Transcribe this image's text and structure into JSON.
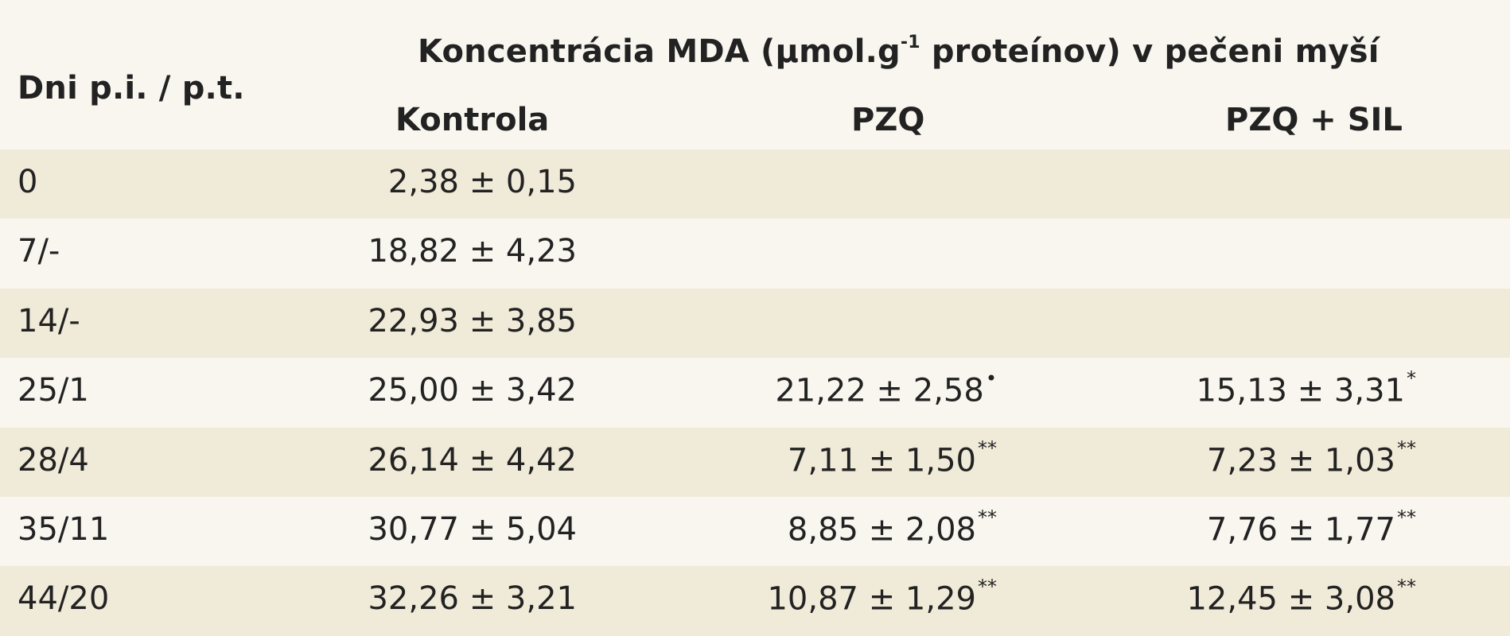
{
  "header": {
    "row_label": "Dni p.i. / p.t.",
    "title_pre": "Koncentrácia MDA (µmol.g",
    "title_sup": "-1",
    "title_post": " proteínov) v pečeni myší",
    "columns": [
      "Kontrola",
      "PZQ",
      "PZQ + SIL"
    ]
  },
  "rows": [
    {
      "label": "0",
      "kontrola": "2,38 ± 0,15",
      "pzq": "",
      "pzq_mark": "",
      "pzqsil": "",
      "pzqsil_mark": ""
    },
    {
      "label": "7/-",
      "kontrola": "18,82 ± 4,23",
      "pzq": "",
      "pzq_mark": "",
      "pzqsil": "",
      "pzqsil_mark": ""
    },
    {
      "label": "14/-",
      "kontrola": "22,93 ± 3,85",
      "pzq": "",
      "pzq_mark": "",
      "pzqsil": "",
      "pzqsil_mark": ""
    },
    {
      "label": "25/1",
      "kontrola": "25,00 ± 3,42",
      "pzq": "21,22 ± 2,58",
      "pzq_mark": "•",
      "pzqsil": "15,13 ± 3,31",
      "pzqsil_mark": "*"
    },
    {
      "label": "28/4",
      "kontrola": "26,14 ± 4,42",
      "pzq": "7,11 ± 1,50",
      "pzq_mark": "**",
      "pzqsil": "7,23 ± 1,03",
      "pzqsil_mark": "**"
    },
    {
      "label": "35/11",
      "kontrola": "30,77 ± 5,04",
      "pzq": "8,85 ± 2,08",
      "pzq_mark": "**",
      "pzqsil": "7,76 ± 1,77",
      "pzqsil_mark": "**"
    },
    {
      "label": "44/20",
      "kontrola": "32,26 ± 3,21",
      "pzq": "10,87 ± 1,29",
      "pzq_mark": "**",
      "pzqsil": "12,45 ± 3,08",
      "pzqsil_mark": "**"
    }
  ]
}
